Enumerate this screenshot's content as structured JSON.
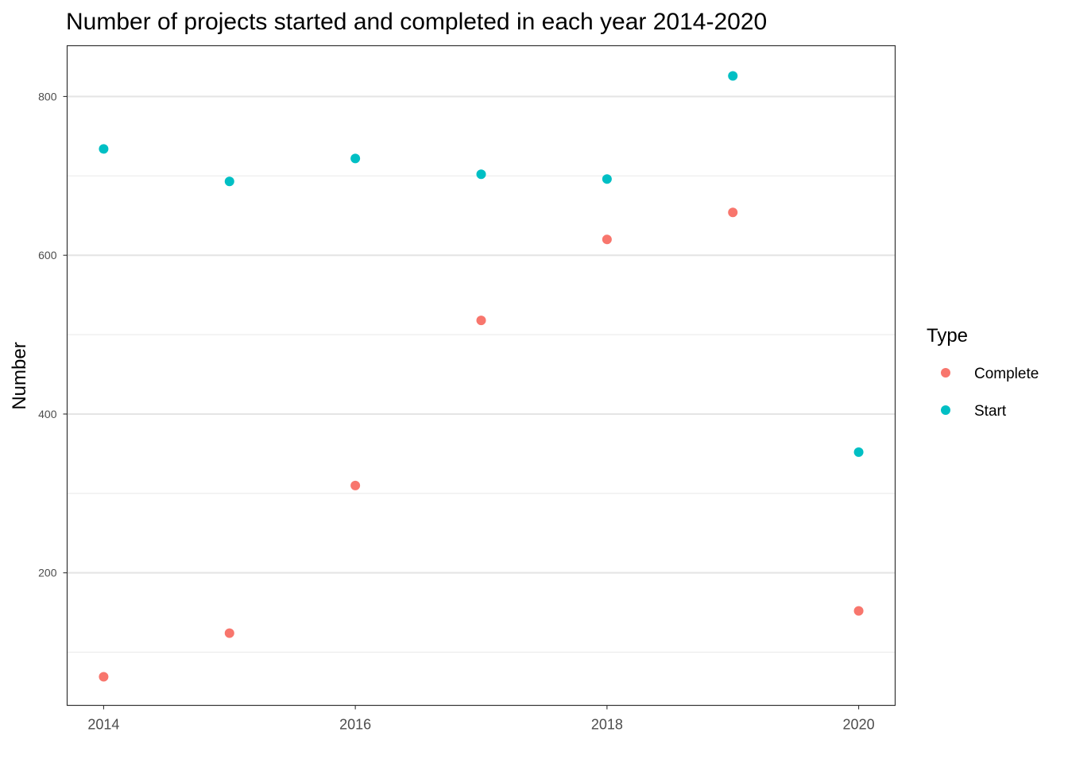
{
  "chart_data": {
    "type": "scatter",
    "title": "Number of projects started and completed in each year 2014-2020",
    "xlabel": "",
    "ylabel": "Number",
    "x": [
      2014,
      2015,
      2016,
      2017,
      2018,
      2019,
      2020
    ],
    "xticks": [
      "2014",
      "2016",
      "2018",
      "2020"
    ],
    "yticks": [
      "200",
      "400",
      "600",
      "800"
    ],
    "xlim": [
      2013.71,
      2020.29
    ],
    "ylim": [
      33,
      864
    ],
    "grid": true,
    "legend": {
      "title": "Type",
      "placement": "right",
      "entries": [
        "Complete",
        "Start"
      ]
    },
    "series": [
      {
        "name": "Complete",
        "color": "#F8766D",
        "values": [
          69,
          124,
          310,
          518,
          620,
          654,
          152
        ]
      },
      {
        "name": "Start",
        "color": "#00BFC4",
        "values": [
          734,
          693,
          722,
          702,
          696,
          826,
          352
        ]
      }
    ]
  }
}
